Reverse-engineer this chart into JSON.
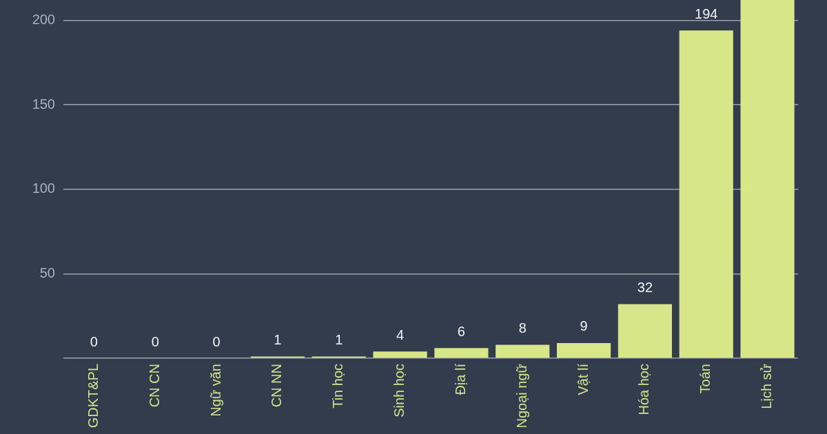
{
  "chart_data": {
    "type": "bar",
    "categories": [
      "GDKT&PL",
      "CN CN",
      "Ngữ văn",
      "CN NN",
      "Tin học",
      "Sinh học",
      "Địa lí",
      "Ngoại ngữ",
      "Vật lí",
      "Hóa học",
      "Toán",
      "Lịch sử"
    ],
    "values": [
      0,
      0,
      0,
      1,
      1,
      4,
      6,
      8,
      9,
      32,
      194,
      212
    ],
    "value_labels": [
      "0",
      "0",
      "0",
      "1",
      "1",
      "4",
      "6",
      "8",
      "9",
      "32",
      "194",
      null
    ],
    "color": "#d8e68a",
    "ylim": [
      0,
      212
    ],
    "yticks": [
      {
        "value": 0,
        "label": null
      },
      50,
      100,
      150,
      200
    ],
    "grid": "y"
  }
}
